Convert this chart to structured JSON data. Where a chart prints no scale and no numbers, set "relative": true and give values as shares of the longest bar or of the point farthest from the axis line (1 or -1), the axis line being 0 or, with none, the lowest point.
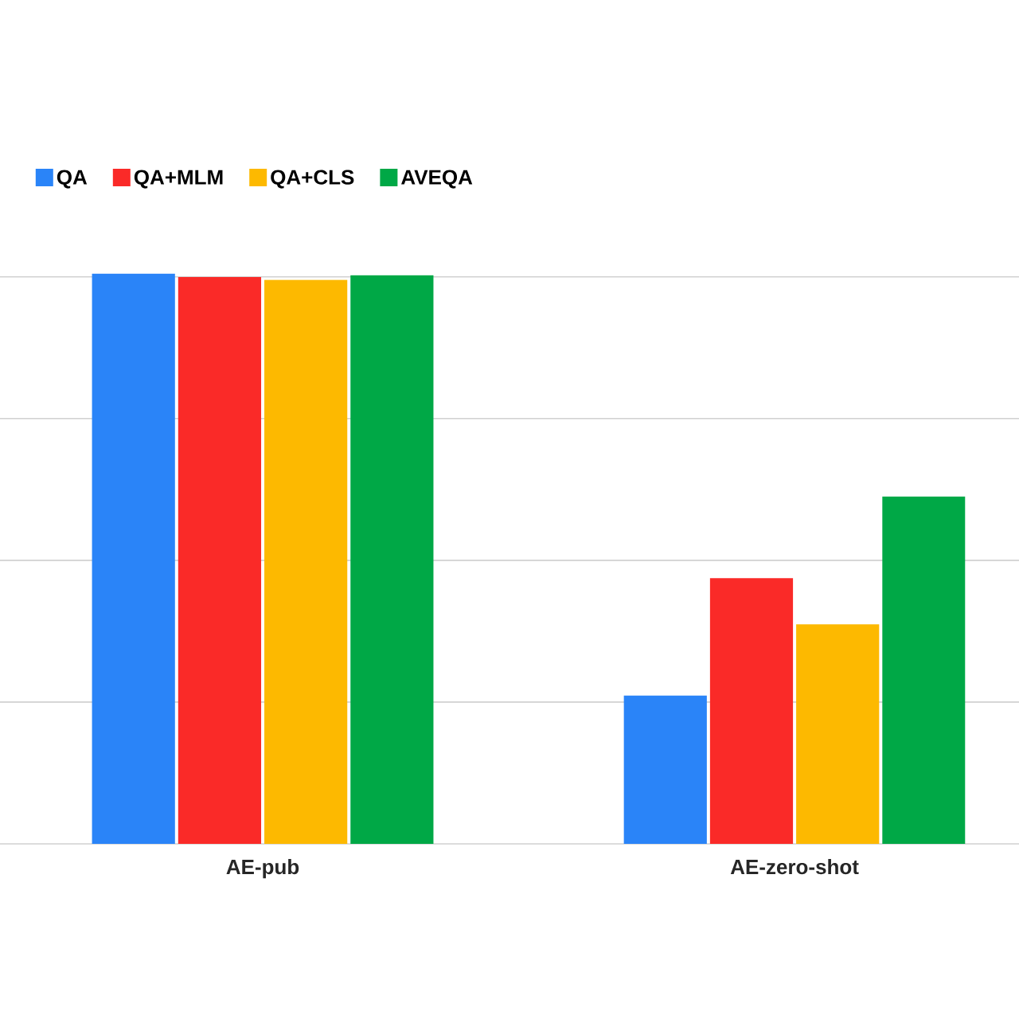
{
  "chart_data": {
    "type": "bar",
    "relative": true,
    "grid": "y",
    "legend": "top left",
    "categories": [
      "AE-pub",
      "AE-zero-shot"
    ],
    "series": [
      {
        "name": "QA",
        "color": "#2a84f8",
        "values": [
          1,
          0.26
        ]
      },
      {
        "name": "QA+MLM",
        "color": "#fa2a28",
        "values": [
          0.994,
          0.466
        ]
      },
      {
        "name": "QA+CLS",
        "color": "#fdb900",
        "values": [
          0.989,
          0.385
        ]
      },
      {
        "name": "AVEQA",
        "color": "#00a846",
        "values": [
          0.997,
          0.609
        ]
      }
    ]
  }
}
